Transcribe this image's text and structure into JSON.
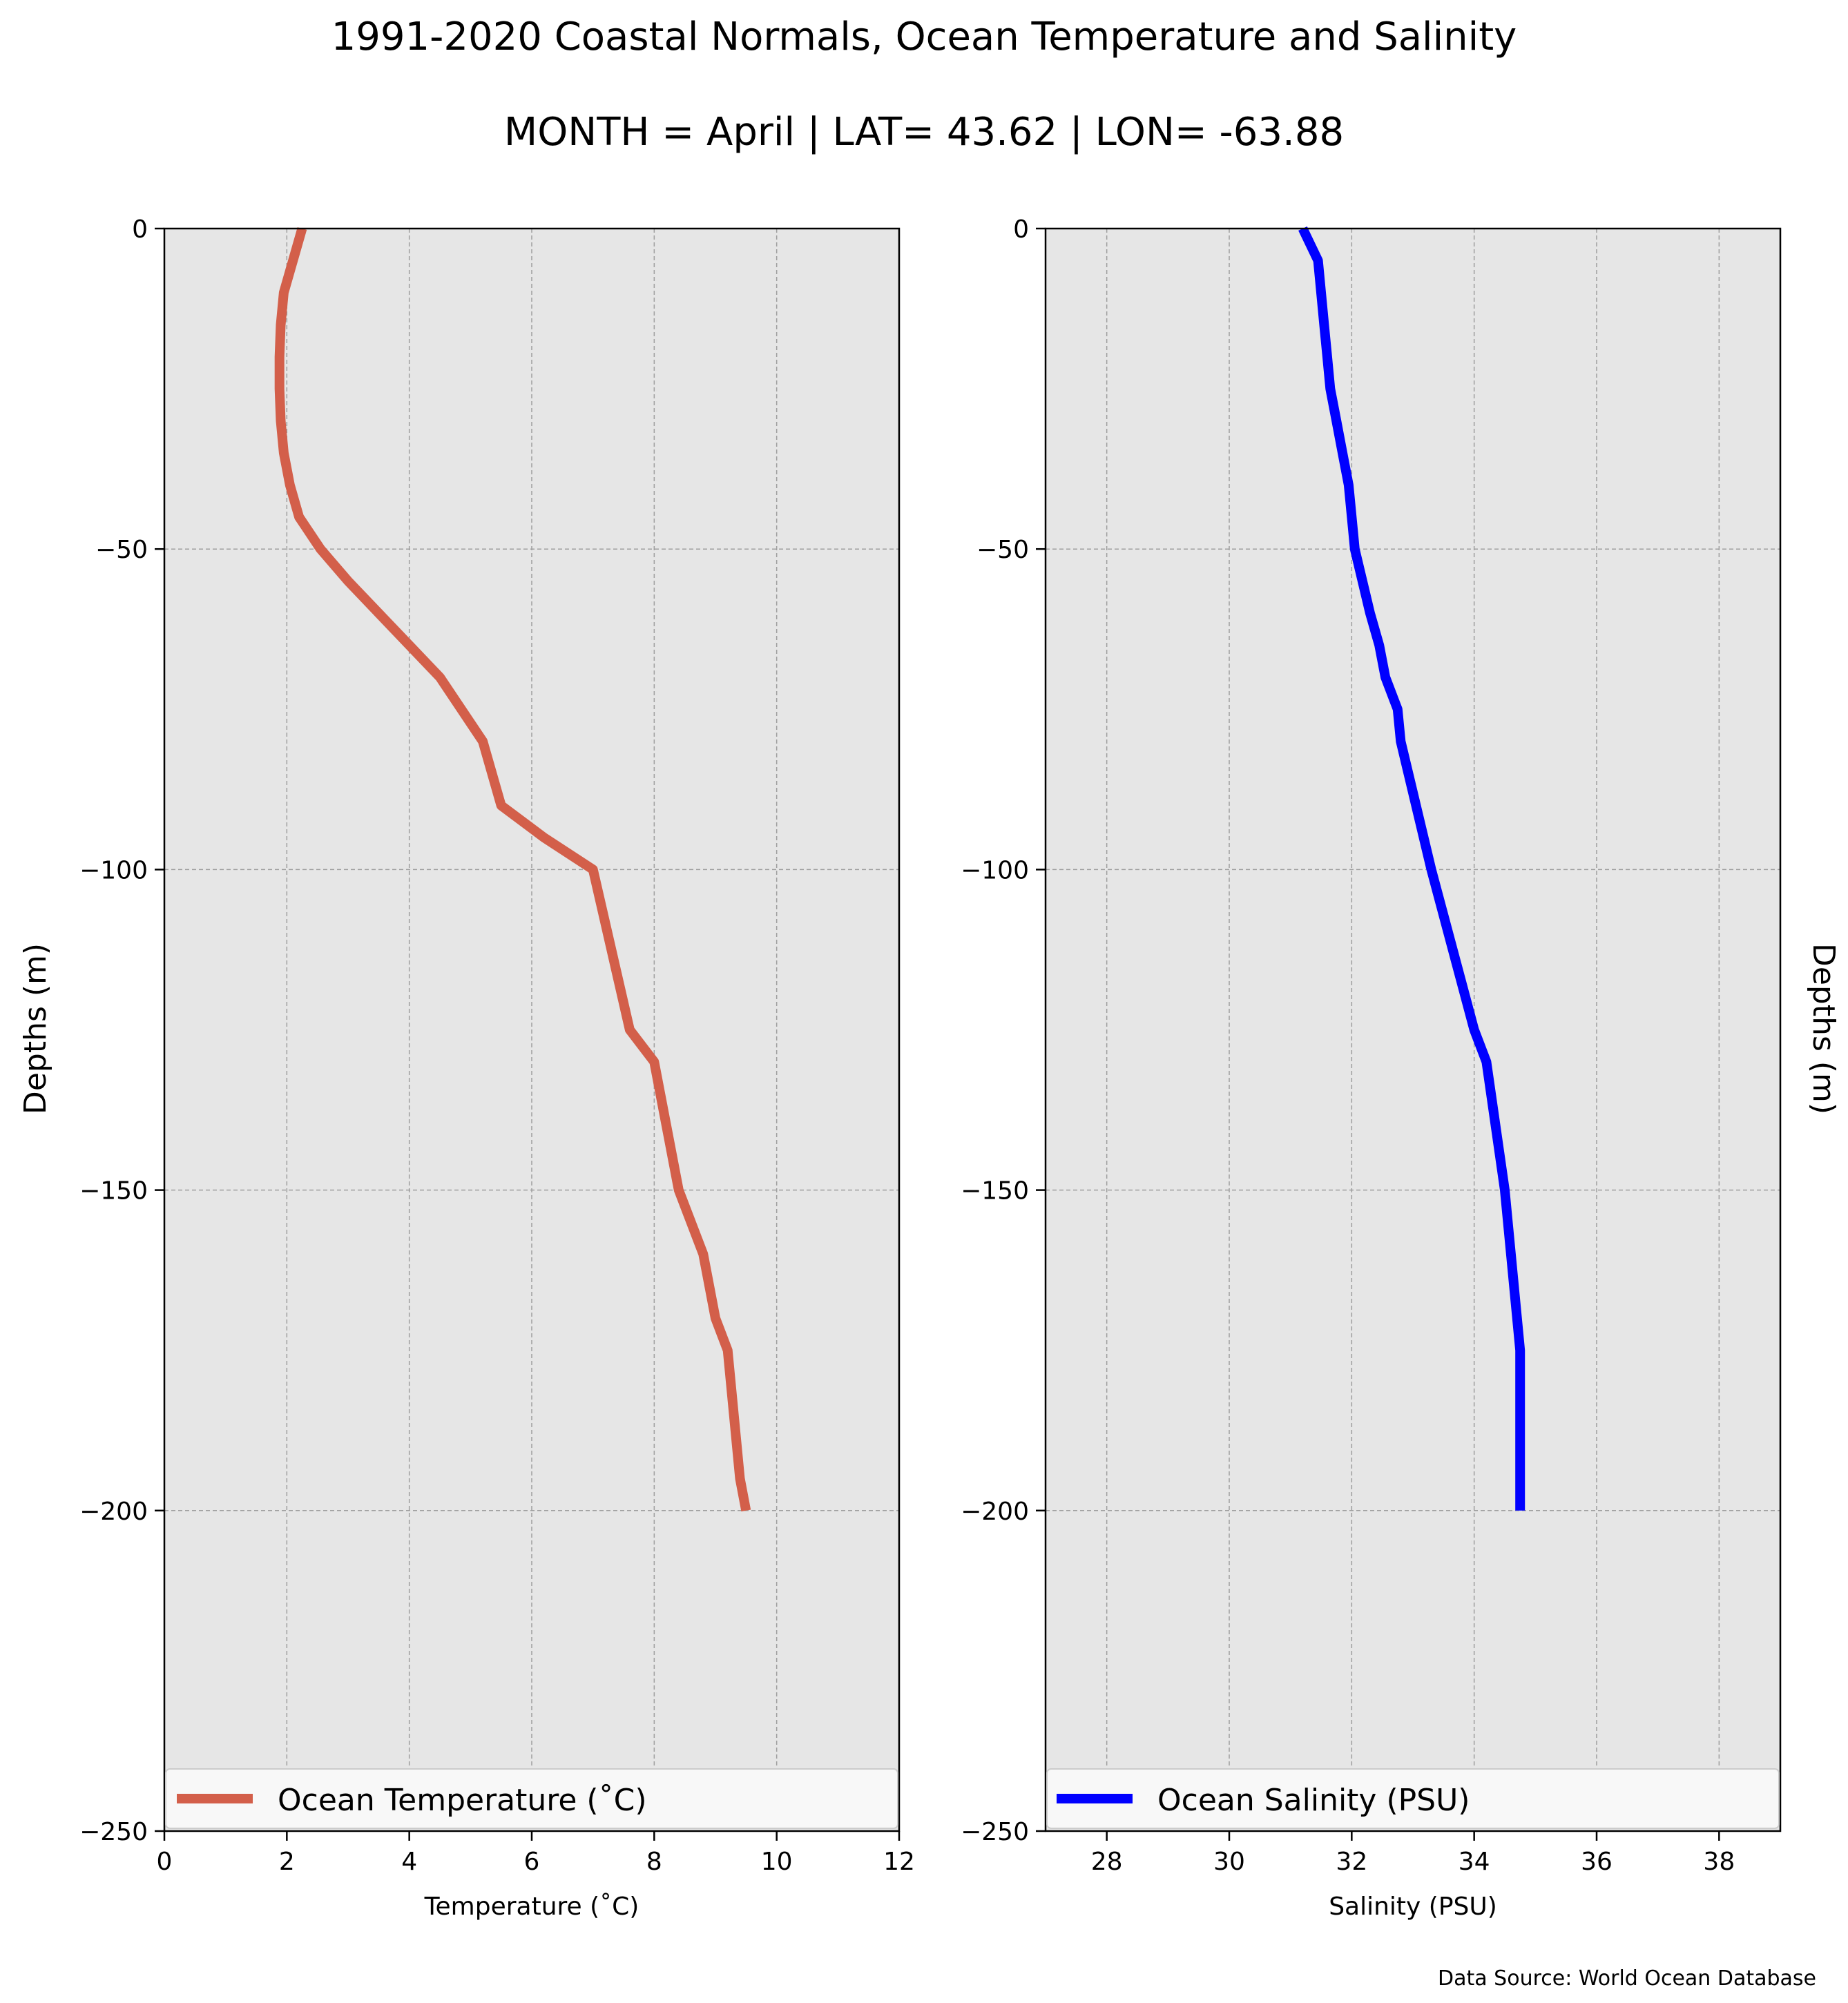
{
  "header": {
    "title": "1991-2020 Coastal Normals, Ocean Temperature and Salinity",
    "subtitle": "MONTH = April | LAT= 43.62 | LON= -63.88"
  },
  "footer": {
    "source": "Data Source: World Ocean Database"
  },
  "colors": {
    "temperature": "#d35f4a",
    "salinity": "#0000ff",
    "plot_bg": "#e6e6e6",
    "grid": "#9e9e9e"
  },
  "chart_data": [
    {
      "type": "line",
      "xlabel": "Temperature ($^\\circ$C)",
      "xlabel_text": "Temperature (˚C)",
      "ylabel": "Depths (m)",
      "xlim": [
        0,
        12
      ],
      "ylim": [
        -250,
        0
      ],
      "xticks": [
        0,
        2,
        4,
        6,
        8,
        10,
        12
      ],
      "yticks": [
        0,
        -50,
        -100,
        -150,
        -200,
        -250
      ],
      "ytick_labels": [
        "0",
        "−50",
        "−100",
        "−150",
        "−200",
        "−250"
      ],
      "grid": true,
      "legend_position": "lower-center",
      "series": [
        {
          "name": "Ocean Temperature (˚C)",
          "color": "#d35f4a",
          "x": [
            2.25,
            2.1,
            1.95,
            1.9,
            1.88,
            1.88,
            1.9,
            1.95,
            2.05,
            2.2,
            2.55,
            3.0,
            3.5,
            4.0,
            4.5,
            5.2,
            5.5,
            6.2,
            7.0,
            7.6,
            8.0,
            8.4,
            8.8,
            9.0,
            9.2,
            9.3,
            9.4,
            9.5
          ],
          "y": [
            0,
            -5,
            -10,
            -15,
            -20,
            -25,
            -30,
            -35,
            -40,
            -45,
            -50,
            -55,
            -60,
            -65,
            -70,
            -80,
            -90,
            -95,
            -100,
            -125,
            -130,
            -150,
            -160,
            -170,
            -175,
            -185,
            -195,
            -200
          ]
        }
      ]
    },
    {
      "type": "line",
      "xlabel": "Salinity (PSU)",
      "ylabel": "Depths (m)",
      "xlim": [
        27,
        39
      ],
      "ylim": [
        -250,
        0
      ],
      "xticks": [
        28,
        30,
        32,
        34,
        36,
        38
      ],
      "yticks": [
        0,
        -50,
        -100,
        -150,
        -200,
        -250
      ],
      "ytick_labels": [
        "0",
        "−50",
        "−100",
        "−150",
        "−200",
        "−250"
      ],
      "grid": true,
      "legend_position": "lower-center",
      "series": [
        {
          "name": "Ocean Salinity (PSU)",
          "color": "#0000ff",
          "x": [
            31.2,
            31.45,
            31.5,
            31.55,
            31.6,
            31.65,
            31.75,
            31.85,
            31.95,
            32.05,
            32.3,
            32.45,
            32.55,
            32.75,
            32.8,
            33.3,
            34.0,
            34.2,
            34.5,
            34.75,
            34.75
          ],
          "y": [
            0,
            -5,
            -10,
            -15,
            -20,
            -25,
            -30,
            -35,
            -40,
            -50,
            -60,
            -65,
            -70,
            -75,
            -80,
            -100,
            -125,
            -130,
            -150,
            -175,
            -200
          ]
        }
      ]
    }
  ]
}
